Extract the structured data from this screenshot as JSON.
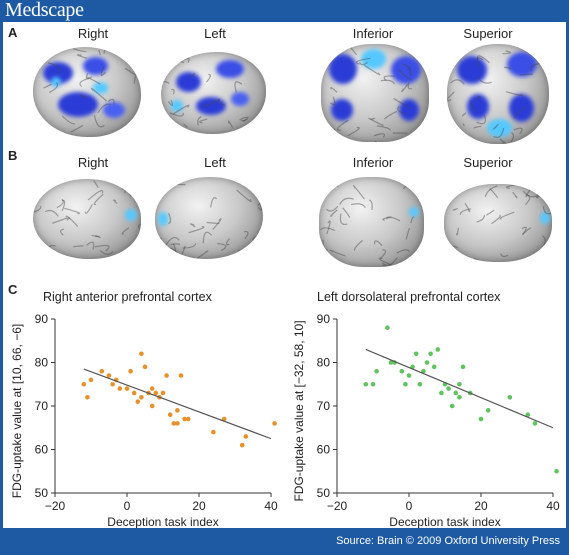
{
  "header": {
    "logo": "Medscape"
  },
  "footer": {
    "credit": "Source: Brain © 2009 Oxford University Press"
  },
  "panels": {
    "a": {
      "label": "A",
      "views": [
        "Right",
        "Left",
        "Inferior",
        "Superior"
      ]
    },
    "b": {
      "label": "B",
      "views": [
        "Right",
        "Left",
        "Inferior",
        "Superior"
      ]
    },
    "c": {
      "label": "C"
    }
  },
  "colors": {
    "highlight": "#2b3cd6",
    "highlight_light": "#55c8ff",
    "orange": "#e8902a",
    "green": "#5ec45e"
  },
  "chart_data": [
    {
      "type": "scatter",
      "title": "Right anterior prefrontal cortex",
      "xlabel": "Deception task index",
      "ylabel": "FDG-uptake value at [10, 66, −6]",
      "xlim": [
        -20,
        40
      ],
      "ylim": [
        50,
        90
      ],
      "xticks": [
        -20,
        0,
        20,
        40
      ],
      "yticks": [
        50,
        60,
        70,
        80,
        90
      ],
      "color": "#e8902a",
      "points": [
        [
          -12,
          75
        ],
        [
          -11,
          72
        ],
        [
          -10,
          76
        ],
        [
          -7,
          78
        ],
        [
          -5,
          77
        ],
        [
          -4,
          75
        ],
        [
          -3,
          76
        ],
        [
          -2,
          74
        ],
        [
          0,
          74
        ],
        [
          1,
          78
        ],
        [
          2,
          73
        ],
        [
          3,
          71
        ],
        [
          4,
          82
        ],
        [
          4,
          72
        ],
        [
          5,
          79
        ],
        [
          6,
          73
        ],
        [
          7,
          70
        ],
        [
          7,
          74
        ],
        [
          8,
          73
        ],
        [
          9,
          72
        ],
        [
          10,
          73
        ],
        [
          11,
          77
        ],
        [
          12,
          68
        ],
        [
          13,
          66
        ],
        [
          14,
          69
        ],
        [
          14,
          66
        ],
        [
          15,
          77
        ],
        [
          16,
          67
        ],
        [
          17,
          67
        ],
        [
          24,
          64
        ],
        [
          27,
          67
        ],
        [
          32,
          61
        ],
        [
          33,
          63
        ],
        [
          41,
          66
        ]
      ],
      "trend": [
        [
          -12,
          78.5
        ],
        [
          40,
          62.5
        ]
      ]
    },
    {
      "type": "scatter",
      "title": "Left dorsolateral prefrontal cortex",
      "xlabel": "Deception task index",
      "ylabel": "FDG-uptake value at [−32, 58, 10]",
      "xlim": [
        -20,
        40
      ],
      "ylim": [
        50,
        90
      ],
      "xticks": [
        -20,
        0,
        20,
        40
      ],
      "yticks": [
        50,
        60,
        70,
        80,
        90
      ],
      "color": "#5ec45e",
      "points": [
        [
          -12,
          75
        ],
        [
          -10,
          75
        ],
        [
          -9,
          78
        ],
        [
          -6,
          88
        ],
        [
          -5,
          80
        ],
        [
          -4,
          80
        ],
        [
          -2,
          78
        ],
        [
          -1,
          75
        ],
        [
          0,
          77
        ],
        [
          1,
          79
        ],
        [
          2,
          82
        ],
        [
          3,
          75
        ],
        [
          4,
          78
        ],
        [
          5,
          80
        ],
        [
          6,
          82
        ],
        [
          7,
          79
        ],
        [
          8,
          83
        ],
        [
          9,
          73
        ],
        [
          10,
          75
        ],
        [
          11,
          74
        ],
        [
          12,
          70
        ],
        [
          13,
          73
        ],
        [
          14,
          75
        ],
        [
          14,
          72
        ],
        [
          15,
          79
        ],
        [
          17,
          73
        ],
        [
          20,
          67
        ],
        [
          22,
          69
        ],
        [
          28,
          72
        ],
        [
          33,
          68
        ],
        [
          35,
          66
        ],
        [
          41,
          55
        ]
      ],
      "trend": [
        [
          -12,
          83
        ],
        [
          40,
          65
        ]
      ]
    }
  ]
}
